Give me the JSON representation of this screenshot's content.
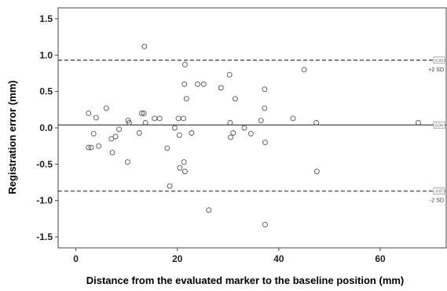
{
  "chart_data": {
    "type": "scatter",
    "xlabel": "Distance from the evaluated marker to the baseline position (mm)",
    "ylabel": "Registration error (mm)",
    "xlim": [
      -3.5,
      73
    ],
    "ylim": [
      -1.65,
      1.65
    ],
    "x_ticks": [
      0,
      20,
      40,
      60
    ],
    "y_ticks": [
      1.5,
      1.0,
      0.5,
      0.0,
      -0.5,
      -1.0,
      -1.5
    ],
    "x_tick_labels": [
      "0",
      "20",
      "40",
      "60"
    ],
    "y_tick_labels": [
      "1.5",
      "1.0",
      "0.5",
      "0.0",
      "-0.5",
      "-1.0",
      "-1.5"
    ],
    "grid": false,
    "reference_lines": [
      {
        "y": 0.93,
        "style": "dashed",
        "box_label": "0.93",
        "side_label": "+2 SD"
      },
      {
        "y": 0.04,
        "style": "solid",
        "box_label": "0.04",
        "side_label": ""
      },
      {
        "y": -0.87,
        "style": "dashed",
        "box_label": "-0.87",
        "side_label": "-2 SD"
      }
    ],
    "points": [
      [
        2.5,
        0.2
      ],
      [
        3.5,
        -0.08
      ],
      [
        4.0,
        0.14
      ],
      [
        4.5,
        -0.25
      ],
      [
        3.0,
        -0.27
      ],
      [
        2.5,
        -0.27
      ],
      [
        6.0,
        0.27
      ],
      [
        7.0,
        -0.15
      ],
      [
        7.2,
        -0.34
      ],
      [
        7.8,
        -0.12
      ],
      [
        8.5,
        -0.02
      ],
      [
        10.3,
        0.1
      ],
      [
        10.5,
        0.07
      ],
      [
        10.2,
        -0.47
      ],
      [
        12.5,
        -0.07
      ],
      [
        13.0,
        0.2
      ],
      [
        13.4,
        0.2
      ],
      [
        13.7,
        0.07
      ],
      [
        13.5,
        1.12
      ],
      [
        15.5,
        0.13
      ],
      [
        16.5,
        0.13
      ],
      [
        18.0,
        -0.28
      ],
      [
        18.5,
        -0.8
      ],
      [
        19.5,
        0.0
      ],
      [
        20.2,
        0.13
      ],
      [
        20.4,
        -0.1
      ],
      [
        20.5,
        -0.55
      ],
      [
        21.2,
        0.13
      ],
      [
        21.3,
        -0.47
      ],
      [
        21.5,
        -0.6
      ],
      [
        21.4,
        0.6
      ],
      [
        21.5,
        0.87
      ],
      [
        21.8,
        0.4
      ],
      [
        22.8,
        -0.07
      ],
      [
        24.0,
        0.6
      ],
      [
        25.2,
        0.6
      ],
      [
        26.2,
        -1.13
      ],
      [
        28.6,
        0.55
      ],
      [
        30.3,
        0.73
      ],
      [
        30.4,
        0.07
      ],
      [
        30.5,
        -0.13
      ],
      [
        31.0,
        -0.07
      ],
      [
        31.4,
        0.4
      ],
      [
        33.2,
        0.0
      ],
      [
        34.5,
        -0.08
      ],
      [
        36.5,
        0.1
      ],
      [
        37.2,
        0.53
      ],
      [
        37.2,
        0.27
      ],
      [
        37.3,
        -0.2
      ],
      [
        37.3,
        -1.33
      ],
      [
        42.8,
        0.13
      ],
      [
        45.0,
        0.8
      ],
      [
        47.4,
        0.07
      ],
      [
        47.5,
        -0.6
      ],
      [
        67.5,
        0.07
      ]
    ]
  }
}
